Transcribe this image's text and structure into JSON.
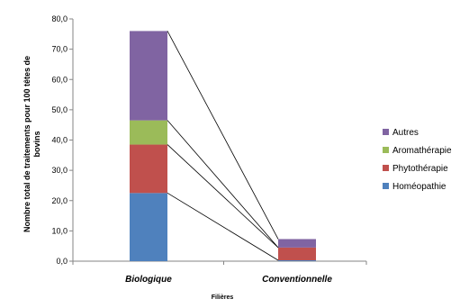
{
  "chart_data": {
    "type": "bar",
    "stacked": true,
    "categories": [
      "Biologique",
      "Conventionnelle"
    ],
    "series": [
      {
        "name": "Homéopathie",
        "color": "#4f81bd",
        "values": [
          22.5,
          0.3
        ]
      },
      {
        "name": "Phytothérapie",
        "color": "#c0504d",
        "values": [
          16.0,
          4.2
        ]
      },
      {
        "name": "Aromathérapie",
        "color": "#9bbb59",
        "values": [
          8.0,
          0.0
        ]
      },
      {
        "name": "Autres",
        "color": "#8064a2",
        "values": [
          29.5,
          2.8
        ]
      }
    ],
    "title": "",
    "xlabel": "Filières",
    "ylabel_line1": "Nombre total de traitements pour 100 têtes de",
    "ylabel_line2": "bovins",
    "ylim": [
      0,
      80
    ],
    "yticks": [
      0,
      10,
      20,
      30,
      40,
      50,
      60,
      70,
      80
    ],
    "ytick_labels": [
      "0,0",
      "10,0",
      "20,0",
      "30,0",
      "40,0",
      "50,0",
      "60,0",
      "70,0",
      "80,0"
    ],
    "grid": false,
    "series_lines": true,
    "legend_position": "right"
  }
}
